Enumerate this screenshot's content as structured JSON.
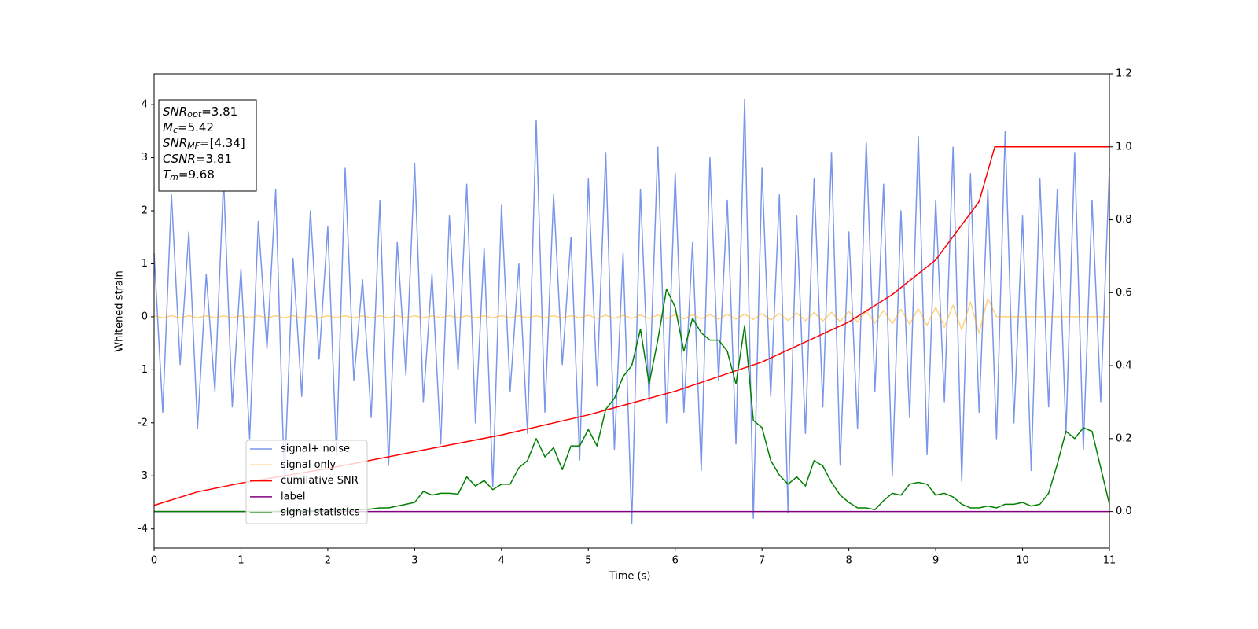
{
  "chart_data": {
    "type": "line",
    "xlabel": "Time (s)",
    "ylabel": "Whitened strain",
    "xlim": [
      0,
      11
    ],
    "xticks": [
      0,
      1,
      2,
      3,
      4,
      5,
      6,
      7,
      8,
      9,
      10,
      11
    ],
    "ylim": [
      -4.36,
      4.58
    ],
    "yticks": [
      -4,
      -3,
      -2,
      -1,
      0,
      1,
      2,
      3,
      4
    ],
    "y2lim": [
      -0.1,
      1.2
    ],
    "y2ticks": [
      {
        "value": 0,
        "label": "0.0"
      },
      0.2,
      0.4,
      0.6,
      0.8,
      {
        "value": 1,
        "label": "1.0"
      },
      1.2
    ],
    "legend": "lower left",
    "annotations": [
      {
        "text": "SNR",
        "sub": "opt",
        "rest": "=3.81"
      },
      {
        "text": "M",
        "sub": "c",
        "rest": "=5.42"
      },
      {
        "text": "SNR",
        "sub": "MF",
        "rest": "=[4.34]"
      },
      {
        "text": "CSNR",
        "rest": "=3.81"
      },
      {
        "text": "T",
        "sub": "m",
        "rest": "=9.68"
      }
    ],
    "x": [
      0,
      0.1,
      0.2,
      0.3,
      0.4,
      0.5,
      0.6,
      0.7,
      0.8,
      0.9,
      1,
      1.1,
      1.2,
      1.3,
      1.4,
      1.5,
      1.6,
      1.7,
      1.8,
      1.9,
      2,
      2.1,
      2.2,
      2.3,
      2.4,
      2.5,
      2.6,
      2.7,
      2.8,
      2.9,
      3,
      3.1,
      3.2,
      3.3,
      3.4,
      3.5,
      3.6,
      3.7,
      3.8,
      3.9,
      4,
      4.1,
      4.2,
      4.3,
      4.4,
      4.5,
      4.6,
      4.7,
      4.8,
      4.9,
      5,
      5.1,
      5.2,
      5.3,
      5.4,
      5.5,
      5.6,
      5.7,
      5.8,
      5.9,
      6,
      6.1,
      6.2,
      6.3,
      6.4,
      6.5,
      6.6,
      6.7,
      6.8,
      6.9,
      7,
      7.1,
      7.2,
      7.3,
      7.4,
      7.5,
      7.6,
      7.7,
      7.8,
      7.9,
      8,
      8.1,
      8.2,
      8.3,
      8.4,
      8.5,
      8.6,
      8.7,
      8.8,
      8.9,
      9,
      9.1,
      9.2,
      9.3,
      9.4,
      9.5,
      9.6,
      9.7,
      9.8,
      9.9,
      10,
      10.1,
      10.2,
      10.3,
      10.4,
      10.5,
      10.6,
      10.7,
      10.8,
      10.9,
      11
    ],
    "series": [
      {
        "name": "signal+ noise",
        "color": "#4169e1",
        "alpha": 0.7,
        "values": [
          1.2,
          -1.8,
          2.3,
          -0.9,
          1.6,
          -2.1,
          0.8,
          -1.4,
          2.6,
          -1.7,
          0.9,
          -2.3,
          1.8,
          -0.6,
          2.4,
          -3.1,
          1.1,
          -1.5,
          2.0,
          -0.8,
          1.7,
          -2.6,
          2.8,
          -1.2,
          0.7,
          -1.9,
          2.2,
          -2.8,
          1.4,
          -1.1,
          2.9,
          -1.6,
          0.8,
          -2.4,
          1.9,
          -1.0,
          2.5,
          -2.0,
          1.3,
          -3.2,
          2.1,
          -1.4,
          1.0,
          -2.2,
          3.7,
          -1.8,
          2.3,
          -0.9,
          1.5,
          -2.7,
          2.6,
          -1.3,
          3.1,
          -2.5,
          1.2,
          -3.9,
          2.4,
          -1.6,
          3.2,
          -2.0,
          2.7,
          -1.8,
          1.4,
          -2.9,
          3.0,
          -1.2,
          2.2,
          -2.4,
          4.1,
          -3.8,
          2.8,
          -1.5,
          2.3,
          -3.7,
          1.9,
          -2.2,
          2.6,
          -1.7,
          3.1,
          -2.8,
          1.6,
          -2.1,
          3.3,
          -1.4,
          2.5,
          -3.0,
          2.0,
          -1.9,
          3.4,
          -2.6,
          2.2,
          -1.6,
          3.2,
          -3.1,
          2.7,
          -1.8,
          2.4,
          -2.3,
          3.5,
          -2.0,
          1.9,
          -2.9,
          2.6,
          -1.7,
          2.4,
          -2.2,
          3.1,
          -2.5,
          2.2,
          -1.6,
          2.8
        ]
      },
      {
        "name": "signal only",
        "color": "#ffa500",
        "alpha": 0.5,
        "values": [
          0.02,
          -0.02,
          0.02,
          -0.02,
          0.02,
          -0.02,
          0.02,
          -0.02,
          0.02,
          -0.02,
          0.02,
          -0.02,
          0.02,
          -0.02,
          0.02,
          -0.02,
          0.02,
          -0.02,
          0.02,
          -0.02,
          0.02,
          -0.02,
          0.02,
          -0.02,
          0.02,
          -0.02,
          0.02,
          -0.02,
          0.02,
          -0.02,
          0.02,
          -0.02,
          0.02,
          -0.02,
          0.02,
          -0.02,
          0.02,
          -0.02,
          0.02,
          -0.02,
          0.02,
          -0.02,
          0.02,
          -0.02,
          0.02,
          -0.02,
          0.02,
          -0.02,
          0.02,
          -0.02,
          0.03,
          -0.03,
          0.03,
          -0.03,
          0.03,
          -0.03,
          0.035,
          -0.035,
          0.035,
          -0.035,
          0.04,
          -0.04,
          0.04,
          -0.04,
          0.045,
          -0.045,
          0.045,
          -0.045,
          0.05,
          -0.05,
          0.06,
          -0.06,
          0.065,
          -0.07,
          0.07,
          -0.075,
          0.08,
          -0.08,
          0.085,
          -0.09,
          0.1,
          -0.1,
          0.11,
          -0.12,
          0.12,
          -0.13,
          0.14,
          -0.14,
          0.15,
          -0.16,
          0.18,
          -0.2,
          0.22,
          -0.25,
          0.28,
          -0.31,
          0.35,
          0,
          0,
          0,
          0,
          0,
          0,
          0,
          0,
          0,
          0,
          0,
          0,
          0,
          0
        ]
      },
      {
        "name": "cumilative SNR",
        "color": "#ff0000",
        "axis": "y2",
        "x": [
          0,
          0.5,
          1,
          2,
          3,
          4,
          5,
          6,
          7,
          8,
          8.5,
          9,
          9.5,
          9.68,
          11
        ],
        "values": [
          0.017,
          0.054,
          0.078,
          0.118,
          0.164,
          0.21,
          0.265,
          0.33,
          0.41,
          0.52,
          0.595,
          0.69,
          0.85,
          1.0,
          1.0
        ]
      },
      {
        "name": "label",
        "color": "#800080",
        "axis": "y2",
        "x": [
          0,
          11
        ],
        "values": [
          0,
          0
        ]
      },
      {
        "name": "signal statistics",
        "color": "#008000",
        "axis": "y2",
        "values": [
          0,
          0,
          0,
          0,
          0,
          0,
          0,
          0,
          0,
          0,
          0,
          0,
          0,
          0,
          0,
          0.002,
          0.002,
          0.002,
          0.002,
          0.003,
          0.003,
          0.004,
          0.004,
          0.005,
          0.005,
          0.007,
          0.01,
          0.01,
          0.015,
          0.02,
          0.025,
          0.055,
          0.045,
          0.05,
          0.05,
          0.048,
          0.095,
          0.07,
          0.085,
          0.06,
          0.075,
          0.075,
          0.12,
          0.14,
          0.2,
          0.15,
          0.175,
          0.115,
          0.18,
          0.18,
          0.225,
          0.18,
          0.28,
          0.31,
          0.37,
          0.4,
          0.5,
          0.35,
          0.47,
          0.61,
          0.56,
          0.44,
          0.53,
          0.49,
          0.47,
          0.47,
          0.44,
          0.35,
          0.51,
          0.25,
          0.23,
          0.14,
          0.1,
          0.075,
          0.095,
          0.07,
          0.14,
          0.125,
          0.08,
          0.045,
          0.025,
          0.01,
          0.01,
          0.005,
          0.03,
          0.05,
          0.045,
          0.075,
          0.08,
          0.075,
          0.045,
          0.05,
          0.04,
          0.02,
          0.01,
          0.01,
          0.015,
          0.01,
          0.02,
          0.02,
          0.025,
          0.015,
          0.02,
          0.05,
          0.13,
          0.22,
          0.2,
          0.23,
          0.22,
          0.12,
          0.02
        ]
      }
    ]
  }
}
